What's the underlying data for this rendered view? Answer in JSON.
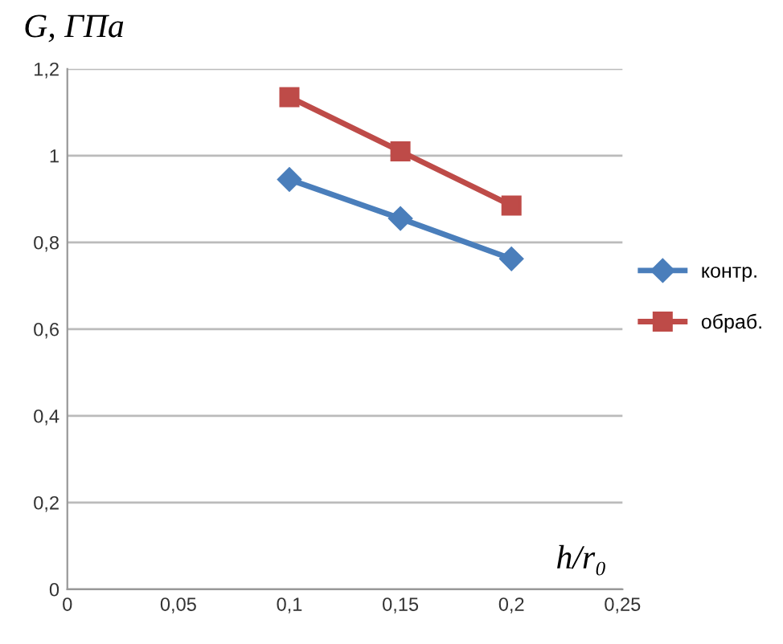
{
  "chart_data": {
    "type": "line",
    "xlabel": "h/r₀",
    "ylabel": "G, ГПа",
    "xlim": [
      0,
      0.25
    ],
    "ylim": [
      0,
      1.2
    ],
    "xticks": [
      0,
      {
        "value": 0.05,
        "label": "0,05"
      },
      {
        "value": 0.1,
        "label": "0,1"
      },
      {
        "value": 0.15,
        "label": "0,15"
      },
      {
        "value": 0.2,
        "label": "0,2"
      },
      {
        "value": 0.25,
        "label": "0,25"
      }
    ],
    "yticks": [
      0,
      {
        "value": 0.2,
        "label": "0,2"
      },
      {
        "value": 0.4,
        "label": "0,4"
      },
      {
        "value": 0.6,
        "label": "0,6"
      },
      {
        "value": 0.8,
        "label": "0,8"
      },
      {
        "value": 1,
        "label": "1"
      },
      {
        "value": 1.2,
        "label": "1,2"
      }
    ],
    "x": [
      0.1,
      0.15,
      0.2
    ],
    "series": [
      {
        "name": "контр.",
        "color": "#4a7ebb",
        "marker": "diamond",
        "values": [
          0.945,
          0.855,
          0.762
        ]
      },
      {
        "name": "обраб.",
        "color": "#be4b48",
        "marker": "square",
        "values": [
          1.135,
          1.01,
          0.885
        ]
      }
    ],
    "grid": "y",
    "legend": "right",
    "line_style": "solid"
  }
}
